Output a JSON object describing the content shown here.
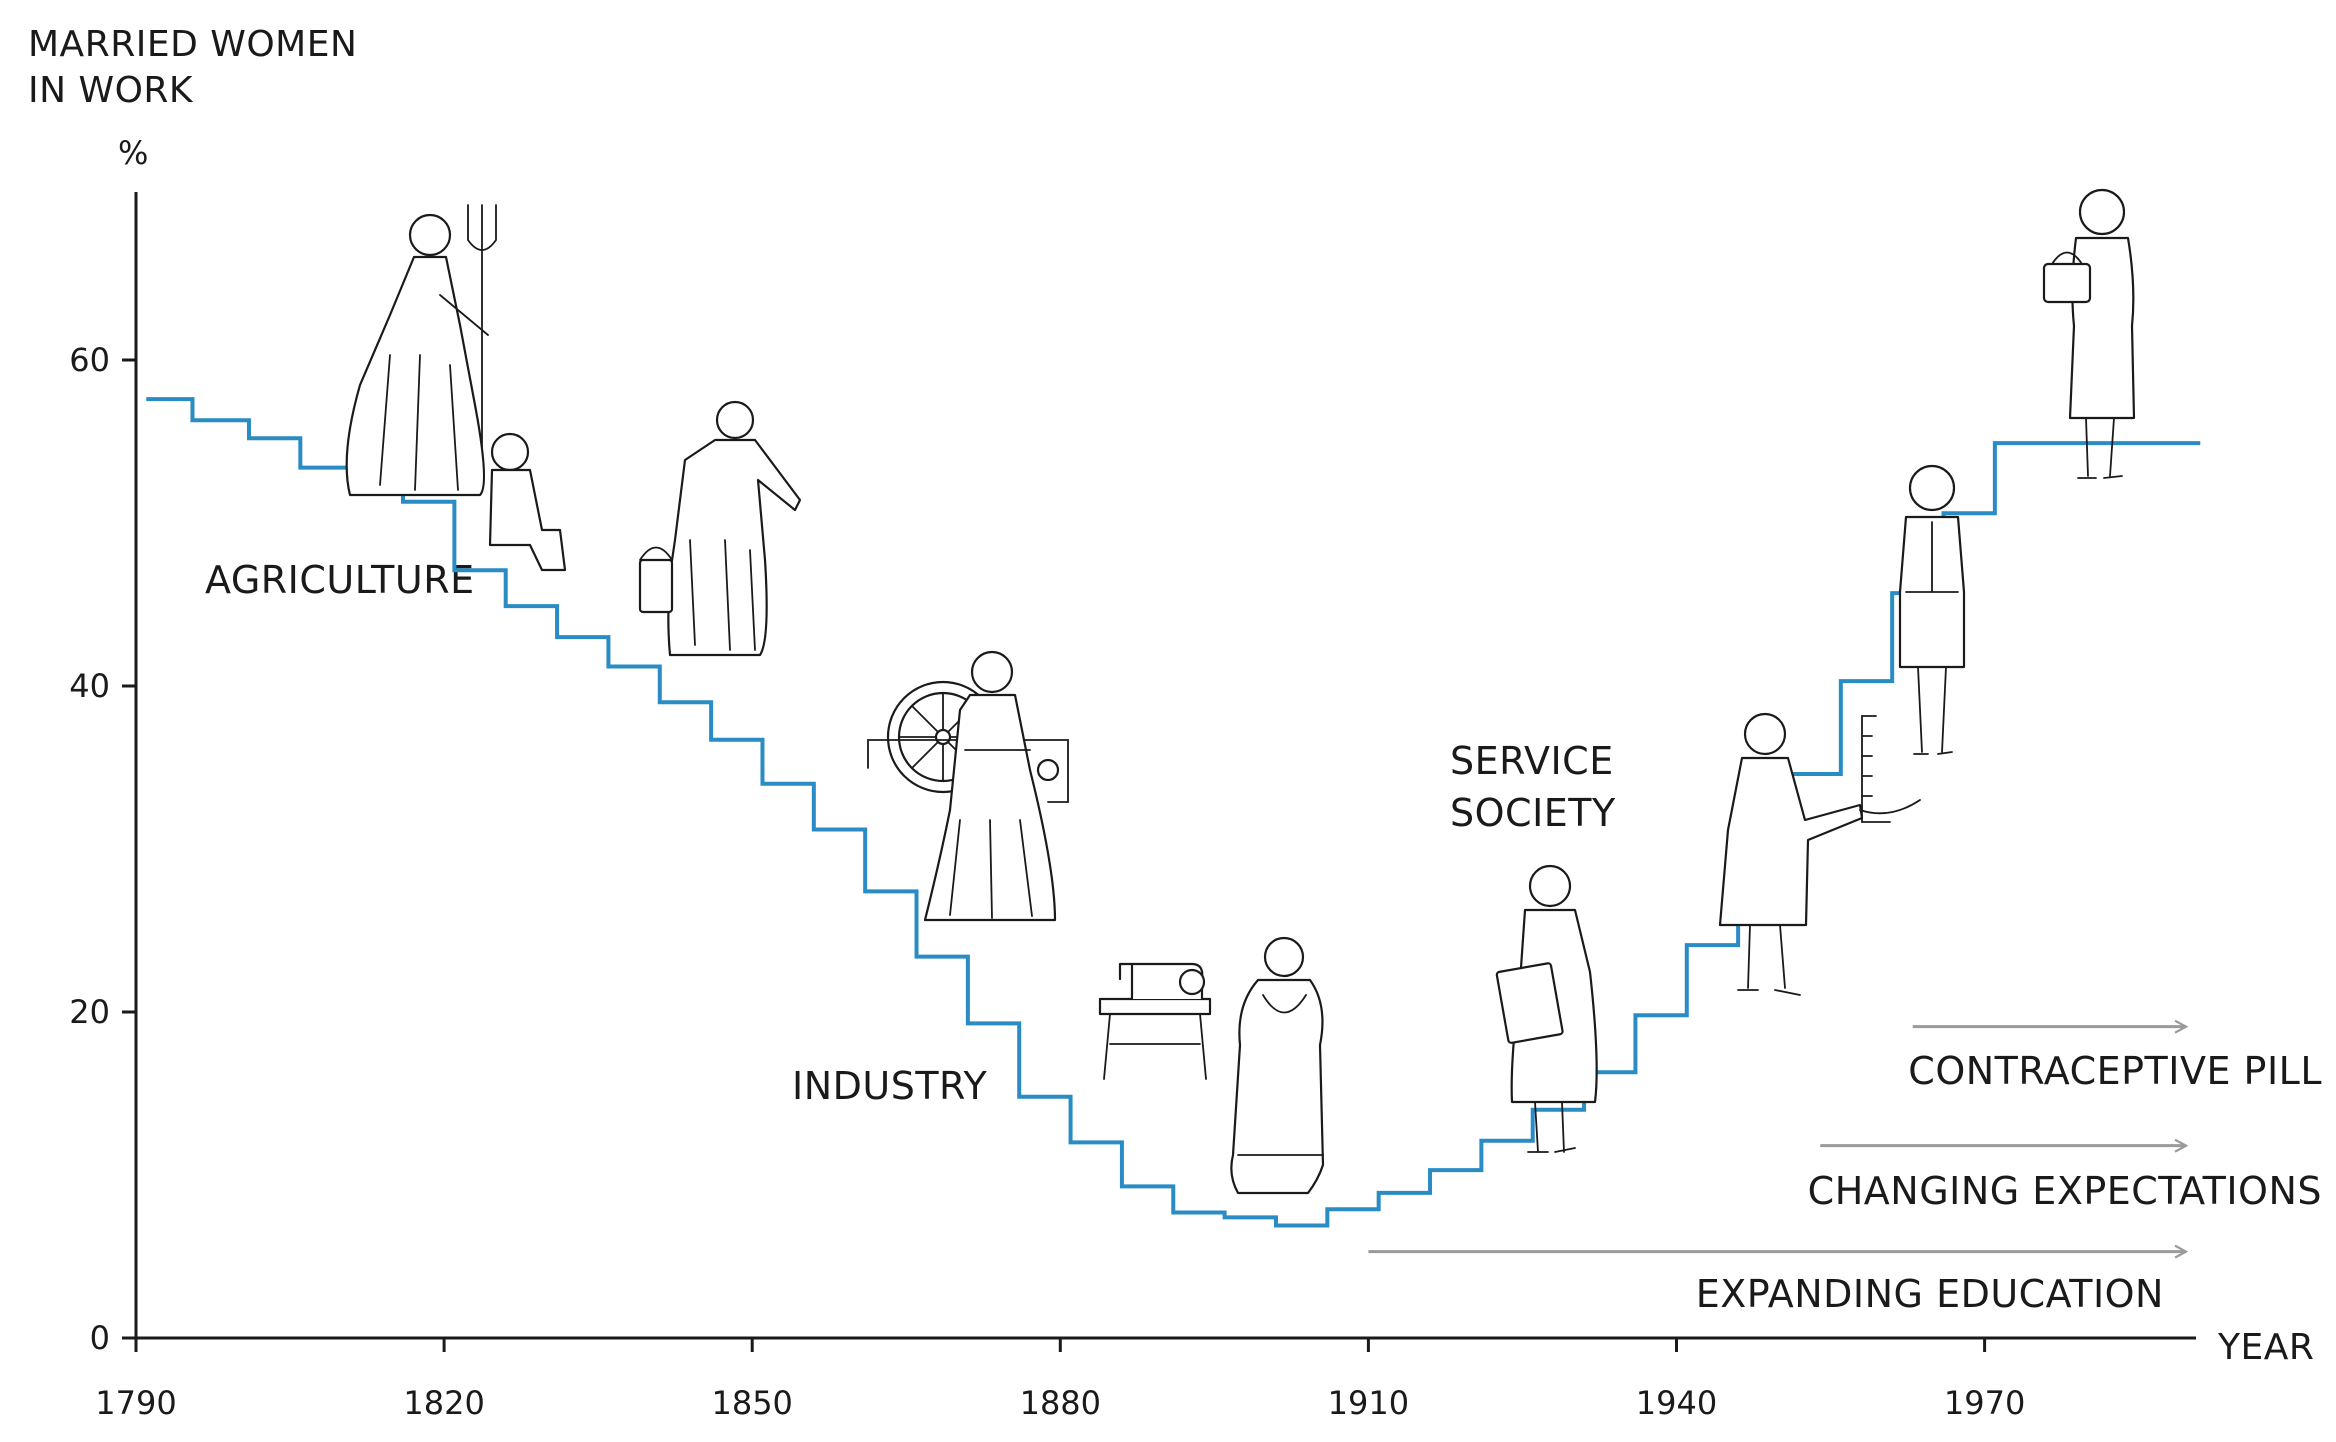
{
  "chart_data": {
    "type": "line",
    "step": true,
    "title": "",
    "ylabel_lines": [
      "MARRIED WOMEN",
      "IN WORK"
    ],
    "yunit": "%",
    "xlabel": "YEAR",
    "xlim": [
      1790,
      1990
    ],
    "ylim": [
      0,
      70
    ],
    "x_ticks": [
      "1790",
      "1820",
      "1850",
      "1880",
      "1910",
      "1940",
      "1970"
    ],
    "x_tick_values": [
      1790,
      1820,
      1850,
      1880,
      1910,
      1940,
      1970
    ],
    "y_ticks": [
      "0",
      "20",
      "40",
      "60"
    ],
    "y_tick_values": [
      0,
      20,
      40,
      60
    ],
    "grid": false,
    "line_color": "#2a8cc4",
    "arrow_color": "#9a9a9a",
    "series": [
      {
        "x": [
          1791,
          1795.5,
          1801,
          1806,
          1811,
          1816,
          1821,
          1826,
          1831,
          1836,
          1841,
          1846,
          1851,
          1856,
          1861,
          1866,
          1871,
          1876,
          1881,
          1886,
          1891,
          1896,
          1901,
          1906,
          1911,
          1916,
          1921,
          1926,
          1931,
          1936,
          1941,
          1946,
          1951,
          1956,
          1961,
          1966,
          1971,
          1976,
          1981,
          1986,
          1991
        ],
        "y": [
          57.6,
          56.3,
          55.2,
          53.4,
          52.1,
          51.3,
          47.1,
          44.9,
          43.0,
          41.2,
          39.0,
          36.7,
          34.0,
          31.2,
          27.4,
          23.4,
          19.3,
          14.8,
          12.0,
          9.3,
          7.7,
          7.4,
          6.9,
          7.9,
          8.9,
          10.3,
          12.1,
          14.0,
          16.3,
          19.8,
          24.1,
          29.0,
          34.6,
          40.3,
          45.7,
          50.6,
          54.9,
          54.9,
          54.9,
          54.9,
          54.9
        ]
      }
    ],
    "annotations": [
      {
        "text": "AGRICULTURE",
        "x": 1807,
        "y": 45.8
      },
      {
        "text": "INDUSTRY",
        "x": 1866,
        "y": 15.1
      },
      {
        "text": "SERVICE SOCIETY",
        "lines": [
          "SERVICE",
          "SOCIETY"
        ],
        "x": 1917,
        "y": 34
      },
      {
        "text": "CONTRACEPTIVE PILL",
        "x": 1968,
        "y": 16.2
      }
    ],
    "arrows": [
      {
        "label": "CONTRACEPTIVE PILL",
        "x_start": 1963,
        "x_end": 1990,
        "y": 19.1
      },
      {
        "label": "CHANGING EXPECTATIONS",
        "x_start": 1954,
        "x_end": 1990,
        "y": 11.8
      },
      {
        "label": "EXPANDING EDUCATION",
        "x_start": 1910,
        "x_end": 1990,
        "y": 5.3
      }
    ],
    "arrow_labels": [
      "CONTRACEPTIVE PILL",
      "CHANGING EXPECTATIONS",
      "EXPANDING EDUCATION"
    ],
    "illustrations": [
      "farm-woman-with-pitchfork-icon",
      "seated-child-icon",
      "milkmaid-with-bucket-icon",
      "spinning-wheel-icon",
      "factory-woman-icon",
      "sewing-machine-icon",
      "seamstress-icon",
      "office-worker-with-folder-icon",
      "telephone-operator-icon",
      "woman-in-suit-icon",
      "professional-woman-with-bag-icon"
    ]
  }
}
